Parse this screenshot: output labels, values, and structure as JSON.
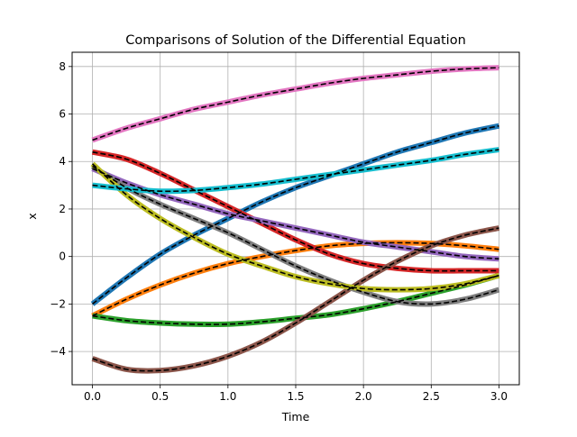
{
  "chart_data": {
    "type": "line",
    "title": "Comparisons of Solution of the Differential Equation",
    "xlabel": "Time",
    "ylabel": "x",
    "xlim": [
      -0.15,
      3.15
    ],
    "ylim": [
      -5.4,
      8.6
    ],
    "xticks": [
      0.0,
      0.5,
      1.0,
      1.5,
      2.0,
      2.5,
      3.0
    ],
    "xtick_labels": [
      "0.0",
      "0.5",
      "1.0",
      "1.5",
      "2.0",
      "2.5",
      "3.0"
    ],
    "yticks": [
      -4,
      -2,
      0,
      2,
      4,
      6,
      8
    ],
    "ytick_labels": [
      "−4",
      "−2",
      "0",
      "2",
      "4",
      "6",
      "8"
    ],
    "grid": true,
    "legend": false,
    "overlay_style": "black dashed line drawn over each thick colored series",
    "x": [
      0.0,
      0.25,
      0.5,
      0.75,
      1.0,
      1.25,
      1.5,
      1.75,
      2.0,
      2.25,
      2.5,
      2.75,
      3.0
    ],
    "series": [
      {
        "color": "#1f77b4",
        "values": [
          -2.0,
          -0.9,
          0.1,
          0.9,
          1.6,
          2.3,
          2.9,
          3.4,
          3.9,
          4.4,
          4.8,
          5.2,
          5.5
        ]
      },
      {
        "color": "#ff7f0e",
        "values": [
          -2.5,
          -1.8,
          -1.2,
          -0.7,
          -0.3,
          0.0,
          0.25,
          0.45,
          0.55,
          0.58,
          0.55,
          0.45,
          0.3
        ]
      },
      {
        "color": "#2ca02c",
        "values": [
          -2.5,
          -2.7,
          -2.8,
          -2.85,
          -2.85,
          -2.75,
          -2.6,
          -2.45,
          -2.2,
          -1.9,
          -1.55,
          -1.2,
          -0.8
        ]
      },
      {
        "color": "#d62728",
        "values": [
          4.4,
          4.1,
          3.5,
          2.8,
          2.1,
          1.4,
          0.7,
          0.1,
          -0.3,
          -0.5,
          -0.6,
          -0.6,
          -0.6
        ]
      },
      {
        "color": "#9467bd",
        "values": [
          3.7,
          3.1,
          2.6,
          2.2,
          1.8,
          1.5,
          1.2,
          0.9,
          0.6,
          0.4,
          0.2,
          0.0,
          -0.1
        ]
      },
      {
        "color": "#8c564b",
        "values": [
          -4.3,
          -4.75,
          -4.8,
          -4.6,
          -4.2,
          -3.6,
          -2.8,
          -1.9,
          -1.0,
          -0.2,
          0.45,
          0.9,
          1.2
        ]
      },
      {
        "color": "#e377c2",
        "values": [
          4.9,
          5.4,
          5.8,
          6.2,
          6.5,
          6.8,
          7.05,
          7.3,
          7.5,
          7.65,
          7.8,
          7.9,
          7.95
        ]
      },
      {
        "color": "#7f7f7f",
        "values": [
          3.8,
          2.9,
          2.2,
          1.6,
          1.0,
          0.3,
          -0.4,
          -1.0,
          -1.5,
          -1.9,
          -2.0,
          -1.8,
          -1.4
        ]
      },
      {
        "color": "#bcbd22",
        "values": [
          3.9,
          2.6,
          1.6,
          0.8,
          0.1,
          -0.4,
          -0.85,
          -1.15,
          -1.35,
          -1.4,
          -1.35,
          -1.15,
          -0.8
        ]
      },
      {
        "color": "#17becf",
        "values": [
          3.0,
          2.85,
          2.75,
          2.78,
          2.9,
          3.05,
          3.25,
          3.45,
          3.65,
          3.85,
          4.05,
          4.3,
          4.5
        ]
      }
    ]
  }
}
